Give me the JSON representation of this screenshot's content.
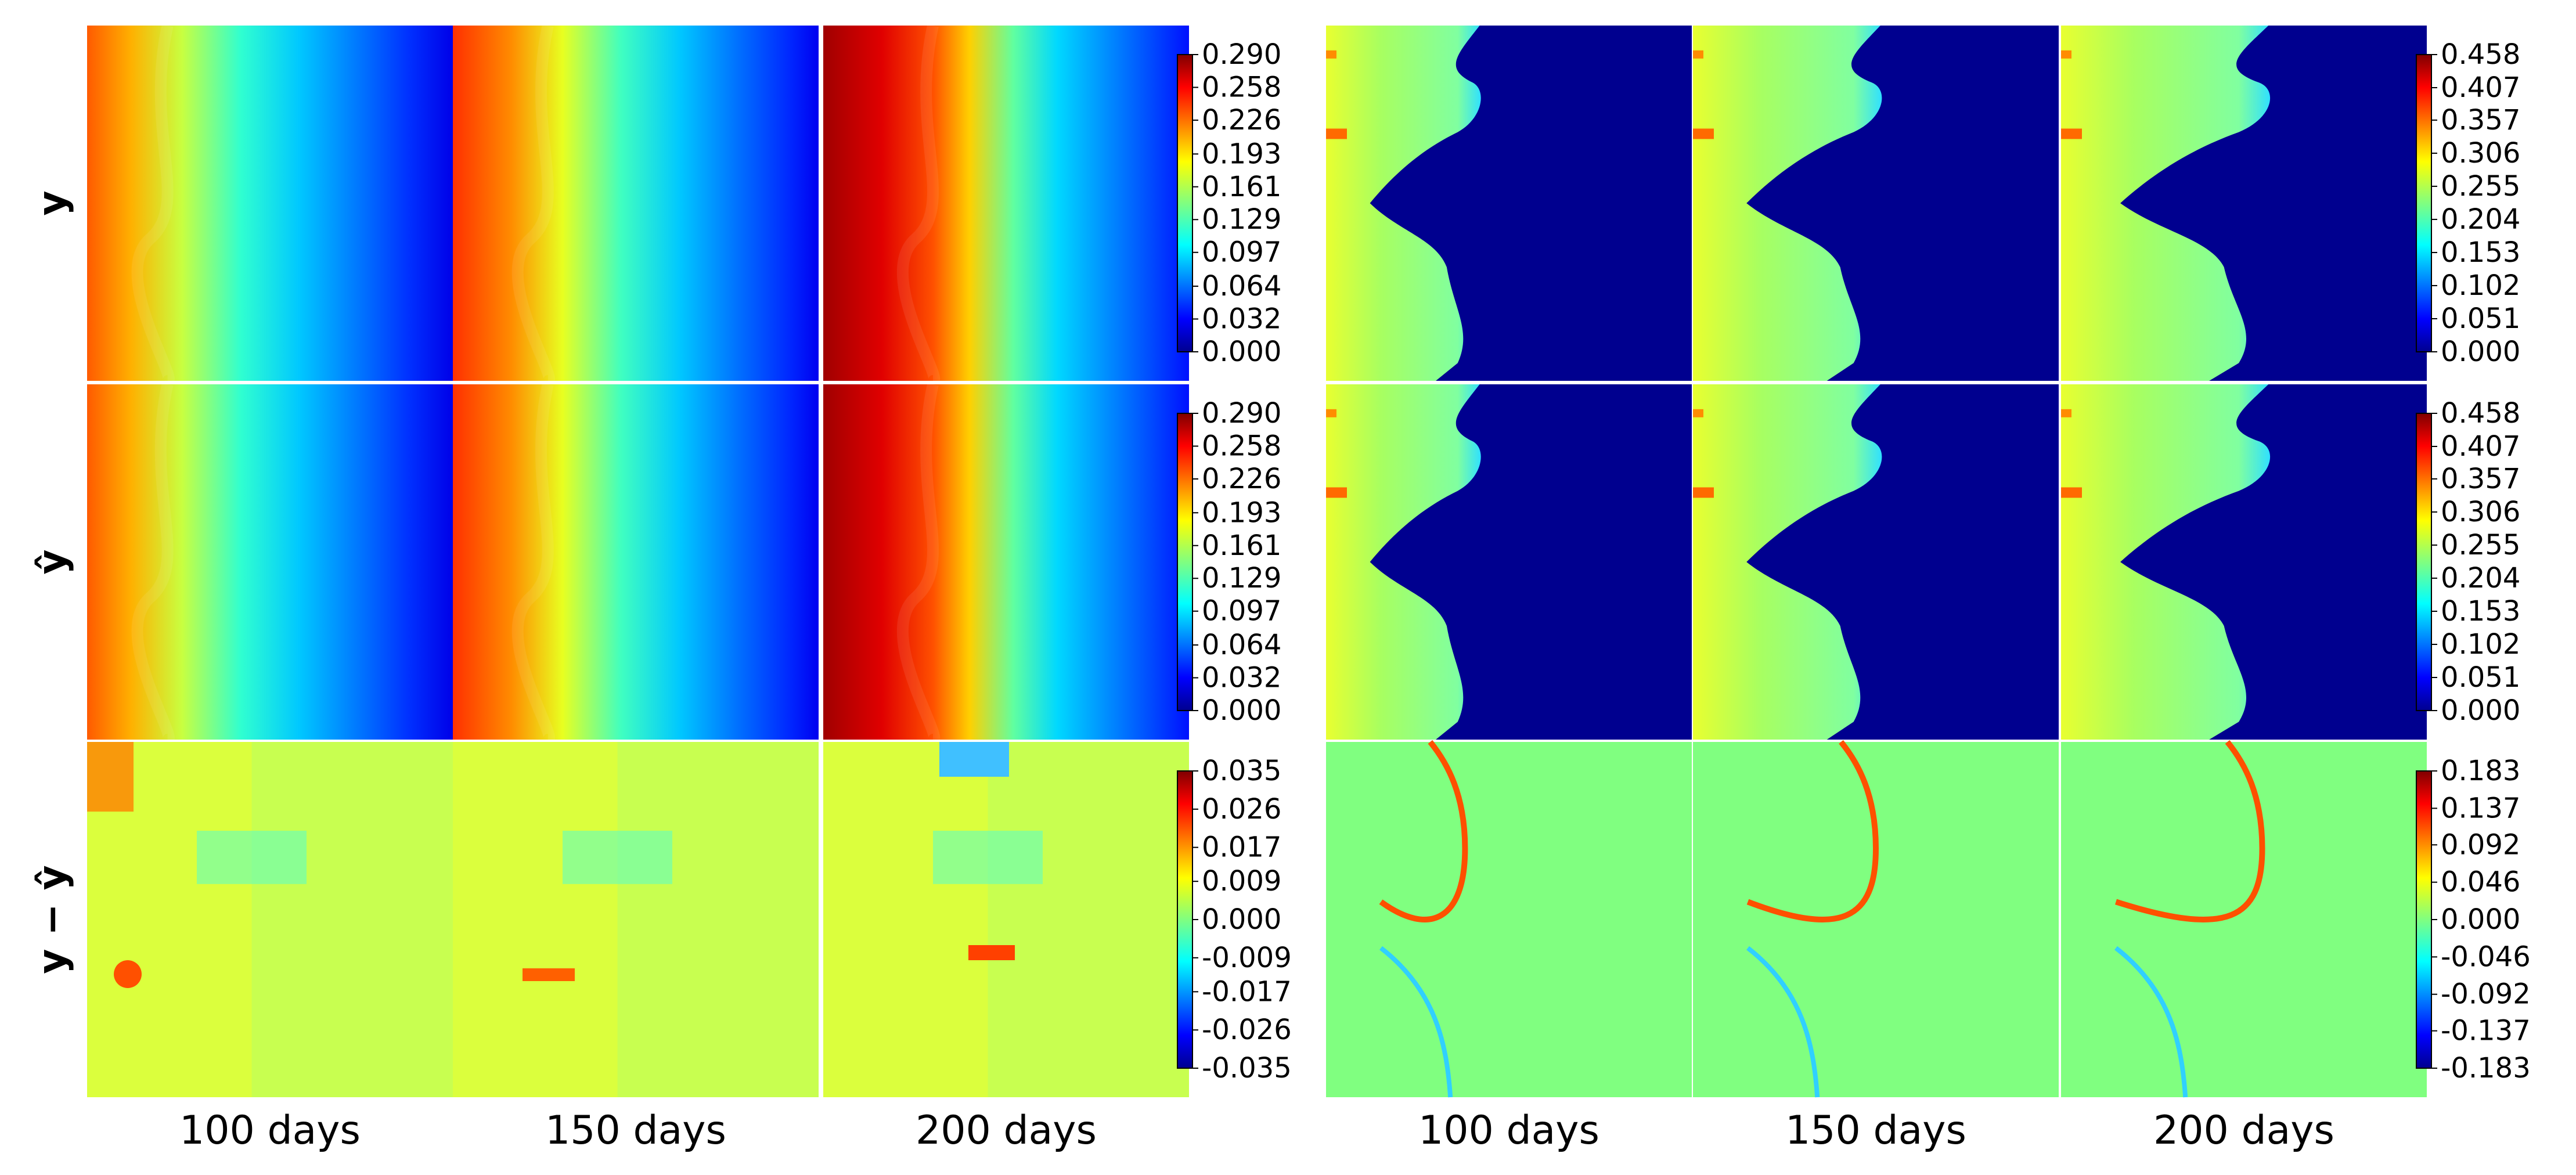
{
  "chart_data": [
    {
      "type": "heatmap",
      "title": "",
      "columns": [
        "100 days",
        "150 days",
        "200 days"
      ],
      "rows": [
        {
          "label": "y",
          "colorbar": {
            "min": 0.0,
            "max": 0.29,
            "ticks": [
              "0.290",
              "0.258",
              "0.226",
              "0.193",
              "0.161",
              "0.129",
              "0.097",
              "0.064",
              "0.032",
              "0.000"
            ]
          }
        },
        {
          "label": "ŷ",
          "colorbar": {
            "min": 0.0,
            "max": 0.29,
            "ticks": [
              "0.290",
              "0.258",
              "0.226",
              "0.193",
              "0.161",
              "0.129",
              "0.097",
              "0.064",
              "0.032",
              "0.000"
            ]
          }
        },
        {
          "label": "y − ŷ",
          "colorbar": {
            "min": -0.035,
            "max": 0.035,
            "ticks": [
              "0.035",
              "0.026",
              "0.017",
              "0.009",
              "0.000",
              "-0.009",
              "-0.017",
              "-0.026",
              "-0.035"
            ]
          }
        }
      ],
      "colormap": "jet",
      "field_description_levels": {
        "y": [
          [
            0.24,
            0.18,
            0.09,
            0.04
          ],
          [
            0.26,
            0.2,
            0.1,
            0.04
          ],
          [
            0.29,
            0.22,
            0.11,
            0.05
          ]
        ]
      }
    },
    {
      "type": "heatmap",
      "title": "",
      "columns": [
        "100 days",
        "150 days",
        "200 days"
      ],
      "rows": [
        {
          "label": "y",
          "colorbar": {
            "min": 0.0,
            "max": 0.458,
            "ticks": [
              "0.458",
              "0.407",
              "0.357",
              "0.306",
              "0.255",
              "0.204",
              "0.153",
              "0.102",
              "0.051",
              "0.000"
            ]
          }
        },
        {
          "label": "ŷ",
          "colorbar": {
            "min": 0.0,
            "max": 0.458,
            "ticks": [
              "0.458",
              "0.407",
              "0.357",
              "0.306",
              "0.255",
              "0.204",
              "0.153",
              "0.102",
              "0.051",
              "0.000"
            ]
          }
        },
        {
          "label": "y − ŷ",
          "colorbar": {
            "min": -0.183,
            "max": 0.183,
            "ticks": [
              "0.183",
              "0.137",
              "0.092",
              "0.046",
              "0.000",
              "-0.046",
              "-0.092",
              "-0.137",
              "-0.183"
            ]
          }
        }
      ],
      "colormap": "jet"
    }
  ]
}
